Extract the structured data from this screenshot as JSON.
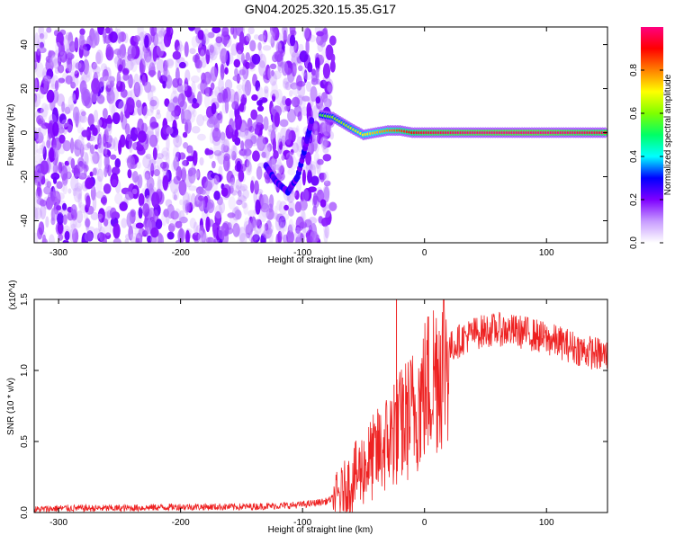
{
  "figure": {
    "title": "GN04.2025.320.15.35.G17"
  },
  "chart_data": [
    {
      "type": "heatmap",
      "xlabel": "Height of straight line (km)",
      "ylabel": "Frequency (Hz)",
      "xlim": [
        -320,
        150
      ],
      "ylim": [
        -50,
        48
      ],
      "xticks": [
        -300,
        -200,
        -100,
        0,
        100
      ],
      "yticks": [
        -40,
        -20,
        0,
        20,
        40
      ],
      "colorbar": {
        "label": "Normalized spectral amplitude",
        "range": [
          0.0,
          1.0
        ],
        "ticks": [
          "0.0",
          "0.2",
          "0.4",
          "0.6",
          "0.8"
        ],
        "colors": [
          "#ffffff",
          "#c79bff",
          "#7f00ff",
          "#0000ff",
          "#00ffff",
          "#00ff66",
          "#80ff00",
          "#ffff00",
          "#ff8000",
          "#ff0000",
          "#ff0080"
        ]
      },
      "noise_region_x": [
        -320,
        -75
      ],
      "descending_trace_points": [
        [
          -130,
          -15
        ],
        [
          -122,
          -22
        ],
        [
          -112,
          -27
        ],
        [
          -104,
          -20
        ],
        [
          -97,
          -5
        ],
        [
          -92,
          7
        ]
      ],
      "signal_band": [
        [
          -85,
          8,
          0.55
        ],
        [
          -75,
          7,
          0.6
        ],
        [
          -60,
          2,
          0.65
        ],
        [
          -50,
          -1,
          0.7
        ],
        [
          -40,
          0,
          0.75
        ],
        [
          -30,
          1,
          0.8
        ],
        [
          -20,
          1,
          0.85
        ],
        [
          -10,
          0,
          0.9
        ],
        [
          0,
          0,
          0.95
        ],
        [
          50,
          0,
          1.0
        ],
        [
          100,
          0,
          1.0
        ],
        [
          150,
          0,
          0.95
        ]
      ]
    },
    {
      "type": "line",
      "xlabel": "Height of straight line (km)",
      "ylabel": "SNR (10 * v/v)",
      "ylabel_scale": "(x10^4)",
      "xlim": [
        -320,
        150
      ],
      "ylim": [
        0.0,
        1.5
      ],
      "xticks": [
        -300,
        -200,
        -100,
        0,
        100
      ],
      "yticks": [
        "0.0",
        "0.5",
        "1.0",
        "1.5"
      ],
      "series_color": "#ee2222",
      "series": [
        {
          "x": [
            -320,
            -300,
            -250,
            -200,
            -150,
            -110,
            -95,
            -80,
            -70,
            -60,
            -50,
            -40,
            -30,
            -20,
            -10,
            0,
            10,
            20,
            30,
            40,
            50,
            60,
            70,
            80,
            90,
            100,
            110,
            120,
            130,
            140,
            150
          ],
          "y": [
            0.02,
            0.03,
            0.03,
            0.04,
            0.04,
            0.05,
            0.06,
            0.08,
            0.12,
            0.22,
            0.32,
            0.4,
            0.5,
            0.6,
            0.7,
            0.85,
            1.02,
            1.15,
            1.22,
            1.26,
            1.28,
            1.29,
            1.28,
            1.27,
            1.25,
            1.22,
            1.2,
            1.17,
            1.14,
            1.12,
            1.1
          ]
        }
      ],
      "spikes": [
        [
          -23,
          1.55
        ],
        [
          -25,
          0.9
        ],
        [
          -18,
          0.95
        ],
        [
          -38,
          0.7
        ]
      ]
    }
  ]
}
